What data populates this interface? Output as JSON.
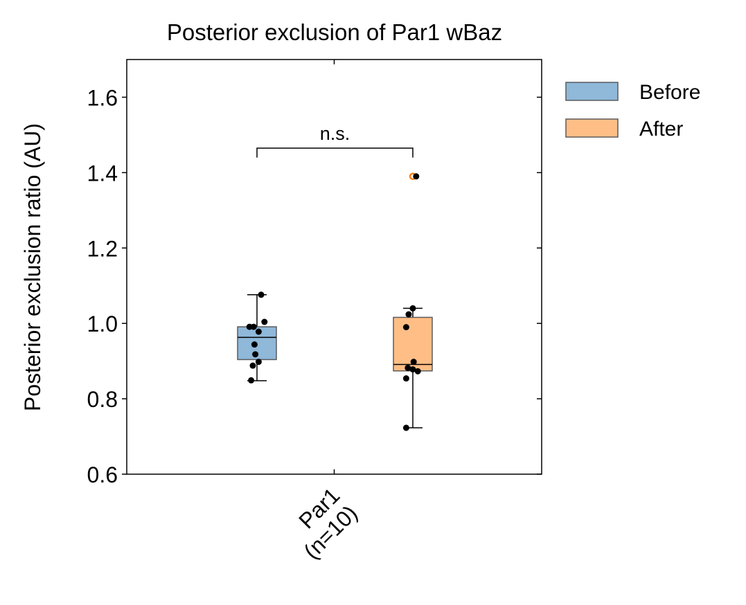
{
  "chart_data": {
    "type": "box",
    "title": "Posterior exclusion of Par1 wBaz",
    "xlabel": "",
    "ylabel": "Posterior exclusion ratio (AU)",
    "ylim": [
      0.6,
      1.7
    ],
    "yticks": [
      0.6,
      0.8,
      1.0,
      1.2,
      1.4,
      1.6
    ],
    "ytick_labels": [
      "0.6",
      "0.8",
      "1.0",
      "1.2",
      "1.4",
      "1.6"
    ],
    "categories": [
      [
        "Par1",
        "(n=10)"
      ]
    ],
    "legend_position": "outside-top-right",
    "grid": false,
    "significance": {
      "text": "n.s.",
      "y": 1.465,
      "drop": 0.025
    },
    "series": [
      {
        "name": "Before",
        "color": "#8fb8d9",
        "edge": "#5a5a5a",
        "box": {
          "whisker_low": 0.848,
          "q1": 0.904,
          "median": 0.963,
          "q3": 0.991,
          "whisker_high": 1.076
        },
        "outliers": [],
        "points": [
          {
            "dx": -0.9,
            "y": 0.991
          },
          {
            "dx": -0.4,
            "y": 0.991
          },
          {
            "dx": 0.9,
            "y": 1.004
          },
          {
            "dx": 0.2,
            "y": 0.978
          },
          {
            "dx": -0.3,
            "y": 0.944
          },
          {
            "dx": -0.2,
            "y": 0.918
          },
          {
            "dx": 0.2,
            "y": 0.898
          },
          {
            "dx": -0.5,
            "y": 0.888
          },
          {
            "dx": -0.7,
            "y": 0.849
          },
          {
            "dx": 0.5,
            "y": 1.076
          }
        ]
      },
      {
        "name": "After",
        "color": "#ffbe86",
        "edge": "#5a5a5a",
        "box": {
          "whisker_low": 0.723,
          "q1": 0.874,
          "median": 0.891,
          "q3": 1.016,
          "whisker_high": 1.04
        },
        "outliers": [
          1.39
        ],
        "outlier_color": "#ff7f0e",
        "points": [
          {
            "dx": 0.4,
            "y": 1.39
          },
          {
            "dx": 0.0,
            "y": 1.04
          },
          {
            "dx": -0.5,
            "y": 1.024
          },
          {
            "dx": -0.8,
            "y": 0.99
          },
          {
            "dx": 0.1,
            "y": 0.898
          },
          {
            "dx": -0.6,
            "y": 0.882
          },
          {
            "dx": 0.0,
            "y": 0.878
          },
          {
            "dx": 0.6,
            "y": 0.873
          },
          {
            "dx": -0.8,
            "y": 0.854
          },
          {
            "dx": -0.8,
            "y": 0.723
          }
        ]
      }
    ]
  }
}
